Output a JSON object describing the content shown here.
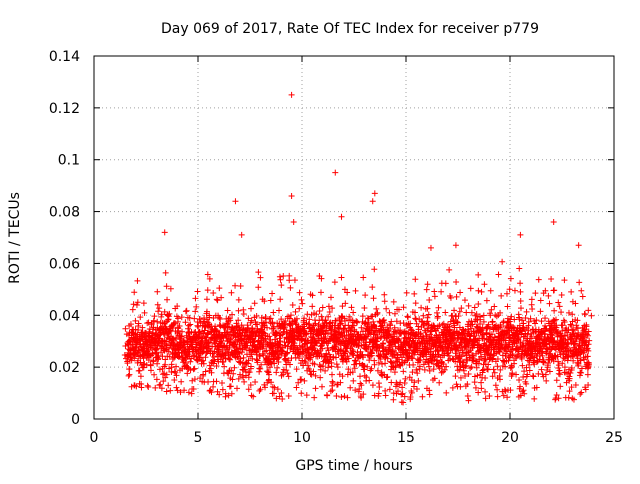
{
  "chart_data": {
    "type": "scatter",
    "title": "Day 069 of 2017, Rate Of TEC Index for receiver p779",
    "xlabel": "GPS time / hours",
    "ylabel": "ROTI / TECUs",
    "xlim": [
      0,
      25
    ],
    "ylim": [
      0,
      0.14
    ],
    "x_ticks": [
      0,
      5,
      10,
      15,
      20,
      25
    ],
    "y_ticks": [
      0,
      0.02,
      0.04,
      0.06,
      0.08,
      0.1,
      0.12,
      0.14
    ],
    "x_tick_labels": [
      "0",
      "5",
      "10",
      "15",
      "20",
      "25"
    ],
    "y_tick_labels": [
      "0",
      "0.02",
      "0.04",
      "0.06",
      "0.08",
      "0.1",
      "0.12",
      "0.14"
    ],
    "grid": true,
    "marker": "+",
    "color": "#ff0000",
    "data_range_x": [
      1.6,
      23.8
    ],
    "notable_points": [
      {
        "x": 9.5,
        "y": 0.125
      },
      {
        "x": 9.5,
        "y": 0.086
      },
      {
        "x": 11.6,
        "y": 0.095
      },
      {
        "x": 6.8,
        "y": 0.084
      },
      {
        "x": 13.5,
        "y": 0.087
      },
      {
        "x": 13.4,
        "y": 0.084
      },
      {
        "x": 11.9,
        "y": 0.078
      },
      {
        "x": 9.6,
        "y": 0.076
      },
      {
        "x": 22.1,
        "y": 0.076
      },
      {
        "x": 3.4,
        "y": 0.072
      },
      {
        "x": 7.1,
        "y": 0.071
      },
      {
        "x": 20.5,
        "y": 0.071
      },
      {
        "x": 23.3,
        "y": 0.067
      },
      {
        "x": 16.2,
        "y": 0.066
      },
      {
        "x": 17.4,
        "y": 0.067
      }
    ],
    "envelope": {
      "x": [
        1.6,
        2.0,
        2.5,
        3.0,
        3.5,
        4.0,
        4.5,
        5.0,
        5.5,
        6.0,
        6.5,
        7.0,
        7.5,
        8.0,
        8.5,
        9.0,
        9.5,
        10.0,
        10.5,
        11.0,
        11.5,
        12.0,
        12.5,
        13.0,
        13.5,
        14.0,
        14.5,
        15.0,
        15.5,
        16.0,
        16.5,
        17.0,
        17.5,
        18.0,
        18.5,
        19.0,
        19.5,
        20.0,
        20.5,
        21.0,
        21.5,
        22.0,
        22.5,
        23.0,
        23.5,
        23.8
      ],
      "low": [
        0.01,
        0.01,
        0.011,
        0.01,
        0.01,
        0.009,
        0.01,
        0.008,
        0.01,
        0.009,
        0.008,
        0.009,
        0.008,
        0.009,
        0.008,
        0.007,
        0.007,
        0.008,
        0.008,
        0.009,
        0.008,
        0.008,
        0.007,
        0.008,
        0.009,
        0.008,
        0.007,
        0.006,
        0.007,
        0.008,
        0.007,
        0.008,
        0.008,
        0.007,
        0.008,
        0.007,
        0.008,
        0.008,
        0.007,
        0.007,
        0.008,
        0.007,
        0.008,
        0.007,
        0.008,
        0.008
      ],
      "high": [
        0.036,
        0.058,
        0.048,
        0.052,
        0.062,
        0.046,
        0.044,
        0.05,
        0.06,
        0.052,
        0.05,
        0.054,
        0.046,
        0.06,
        0.052,
        0.056,
        0.06,
        0.05,
        0.052,
        0.058,
        0.056,
        0.06,
        0.052,
        0.058,
        0.062,
        0.05,
        0.048,
        0.052,
        0.058,
        0.054,
        0.05,
        0.062,
        0.056,
        0.052,
        0.06,
        0.054,
        0.066,
        0.058,
        0.062,
        0.05,
        0.056,
        0.058,
        0.056,
        0.052,
        0.054,
        0.044
      ],
      "typical": [
        0.022,
        0.025,
        0.024,
        0.026,
        0.028,
        0.024,
        0.024,
        0.025,
        0.027,
        0.026,
        0.025,
        0.026,
        0.024,
        0.027,
        0.026,
        0.026,
        0.027,
        0.025,
        0.025,
        0.027,
        0.026,
        0.027,
        0.025,
        0.026,
        0.028,
        0.025,
        0.024,
        0.025,
        0.026,
        0.026,
        0.024,
        0.027,
        0.026,
        0.025,
        0.026,
        0.025,
        0.027,
        0.026,
        0.026,
        0.024,
        0.025,
        0.026,
        0.025,
        0.024,
        0.025,
        0.023
      ]
    }
  }
}
